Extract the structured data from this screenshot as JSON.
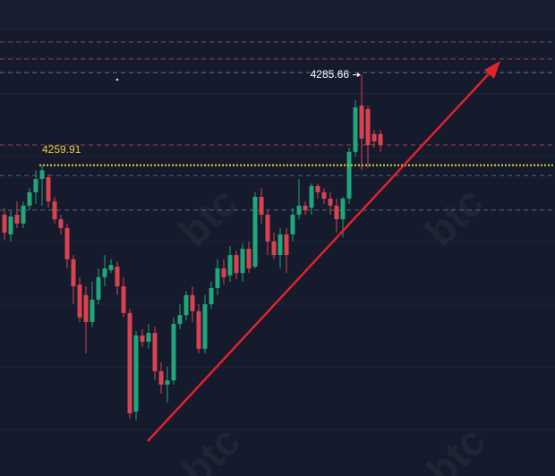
{
  "chart_data": {
    "type": "candlestick",
    "watermark": "btc",
    "ylim": [
      4171.34,
      4307
    ],
    "up_color": "#1fa67a",
    "down_color": "#d9434f",
    "open": [
      4245.8,
      4240.2,
      4245.8,
      4243.3,
      4248.4,
      4252.2,
      4256.0,
      4256.5,
      4249.6,
      4244.5,
      4242.0,
      4233.1,
      4225.9,
      4222.9,
      4215.2,
      4221.6,
      4228.0,
      4230.0,
      4231.0,
      4225.4,
      4217.8,
      4189.7,
      4211.4,
      4209.6,
      4212.1,
      4201.2,
      4197.4,
      4198.6,
      4214.7,
      4217.2,
      4222.9,
      4218.3,
      4207.6,
      4220.3,
      4224.9,
      4230.5,
      4228.5,
      4234.3,
      4229.2,
      4236.1,
      4231.0,
      4250.9,
      4245.8,
      4238.2,
      4234.3,
      4240.2,
      4240.2,
      4245.8,
      4248.4,
      4247.8,
      4254.0,
      4252.2,
      4250.4,
      4248.4,
      4244.5,
      4250.4,
      4263.7,
      4276.9,
      4275.9,
      4268.8,
      4268.8
    ],
    "high": [
      4247.8,
      4246.8,
      4249.6,
      4249.6,
      4253.4,
      4258.5,
      4259.91,
      4257.3,
      4250.9,
      4245.8,
      4243.3,
      4234.3,
      4228.0,
      4225.4,
      4226.7,
      4230.5,
      4234.3,
      4233.1,
      4232.5,
      4228.0,
      4219.0,
      4212.7,
      4213.2,
      4214.7,
      4213.9,
      4203.7,
      4202.5,
      4216.5,
      4220.3,
      4224.1,
      4225.4,
      4220.3,
      4222.9,
      4226.7,
      4233.1,
      4233.1,
      4236.9,
      4235.6,
      4237.6,
      4238.2,
      4252.2,
      4253.4,
      4247.1,
      4240.7,
      4242.0,
      4242.0,
      4247.8,
      4256.0,
      4249.6,
      4254.7,
      4254.7,
      4253.4,
      4252.2,
      4250.4,
      4250.9,
      4264.9,
      4278.4,
      4285.66,
      4276.9,
      4270.0,
      4270.0
    ],
    "low": [
      4238.7,
      4238.2,
      4242.0,
      4242.0,
      4247.1,
      4248.9,
      4248.4,
      4247.8,
      4243.3,
      4240.2,
      4230.5,
      4220.3,
      4215.2,
      4206.3,
      4213.9,
      4220.3,
      4225.4,
      4229.2,
      4222.9,
      4216.5,
      4187.7,
      4187.2,
      4208.1,
      4207.6,
      4198.6,
      4194.8,
      4192.3,
      4197.4,
      4213.2,
      4215.7,
      4215.2,
      4206.3,
      4206.3,
      4219.0,
      4222.9,
      4225.9,
      4226.7,
      4227.4,
      4226.7,
      4229.2,
      4230.5,
      4243.3,
      4234.3,
      4233.1,
      4230.5,
      4229.2,
      4238.2,
      4244.5,
      4245.8,
      4245.8,
      4250.4,
      4248.9,
      4245.8,
      4240.7,
      4239.4,
      4248.9,
      4262.4,
      4258.5,
      4259.1,
      4264.9,
      4263.7
    ],
    "close": [
      4240.7,
      4245.3,
      4243.3,
      4248.4,
      4252.2,
      4256.0,
      4258.5,
      4249.6,
      4244.5,
      4242.0,
      4233.1,
      4225.4,
      4216.5,
      4215.2,
      4221.6,
      4228.0,
      4230.5,
      4231.5,
      4225.4,
      4217.8,
      4189.2,
      4211.4,
      4209.6,
      4212.1,
      4201.2,
      4197.4,
      4198.6,
      4214.7,
      4217.2,
      4222.9,
      4218.3,
      4207.6,
      4220.3,
      4224.9,
      4230.5,
      4228.0,
      4234.3,
      4229.2,
      4236.1,
      4230.5,
      4250.9,
      4245.8,
      4238.2,
      4234.3,
      4240.2,
      4234.3,
      4245.8,
      4248.4,
      4247.1,
      4254.0,
      4252.2,
      4250.4,
      4248.4,
      4244.5,
      4250.4,
      4263.7,
      4276.4,
      4267.5,
      4265.7,
      4266.7,
      4265.7
    ],
    "reference_lines": [
      {
        "value": 4295.0,
        "color": "#b4485a"
      },
      {
        "value": 4290.2,
        "color": "#b4485a"
      },
      {
        "value": 4286.3,
        "color": "#6f8299"
      },
      {
        "value": 4265.7,
        "color": "#b4485a"
      },
      {
        "value": 4257.0,
        "color": "#4f7f93"
      },
      {
        "value": 4247.1,
        "color": "#4f7f93"
      }
    ],
    "price_line": {
      "value": 4259.91,
      "color": "#e6d43c"
    },
    "high_marker": {
      "value": 4285.66,
      "color": "#ffffff"
    }
  }
}
